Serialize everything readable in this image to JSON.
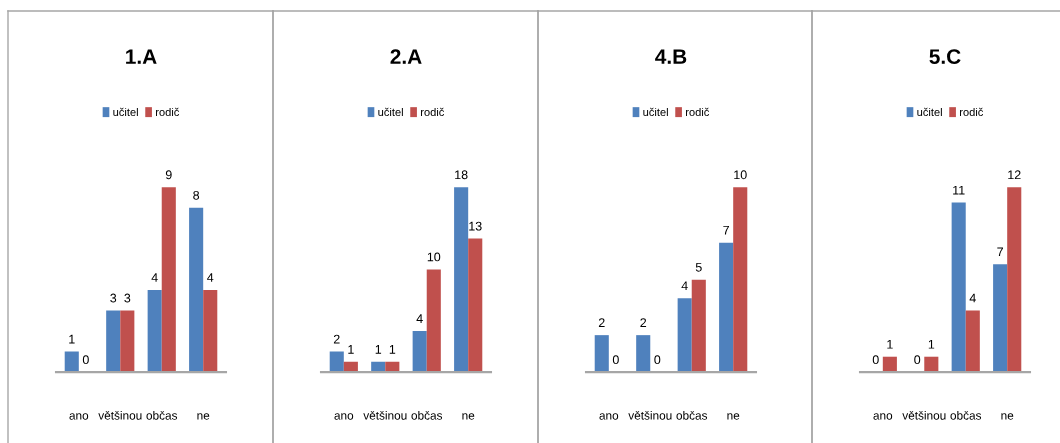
{
  "chart_data": [
    {
      "type": "bar",
      "title": "1.A",
      "categories": [
        "ano",
        "většinou",
        "občas",
        "ne"
      ],
      "series": [
        {
          "name": "učitel",
          "color": "#4f81bd",
          "values": [
            1,
            3,
            4,
            8
          ]
        },
        {
          "name": "rodič",
          "color": "#c0504d",
          "values": [
            0,
            3,
            9,
            4
          ]
        }
      ],
      "data_labels": true,
      "legend": "top",
      "grid": false,
      "tick_labels": "x"
    },
    {
      "type": "bar",
      "title": "2.A",
      "categories": [
        "ano",
        "většinou",
        "občas",
        "ne"
      ],
      "series": [
        {
          "name": "učitel",
          "color": "#4f81bd",
          "values": [
            2,
            1,
            4,
            18
          ]
        },
        {
          "name": "rodič",
          "color": "#c0504d",
          "values": [
            1,
            1,
            10,
            13
          ]
        }
      ],
      "data_labels": true,
      "legend": "top",
      "grid": false,
      "tick_labels": "x"
    },
    {
      "type": "bar",
      "title": "4.B",
      "categories": [
        "ano",
        "většinou",
        "občas",
        "ne"
      ],
      "series": [
        {
          "name": "učitel",
          "color": "#4f81bd",
          "values": [
            2,
            2,
            4,
            7
          ]
        },
        {
          "name": "rodič",
          "color": "#c0504d",
          "values": [
            0,
            0,
            5,
            10
          ]
        }
      ],
      "data_labels": true,
      "legend": "top",
      "grid": false,
      "tick_labels": "x"
    },
    {
      "type": "bar",
      "title": "5.C",
      "categories": [
        "ano",
        "většinou",
        "občas",
        "ne"
      ],
      "series": [
        {
          "name": "učitel",
          "color": "#4f81bd",
          "values": [
            0,
            0,
            11,
            7
          ]
        },
        {
          "name": "rodič",
          "color": "#c0504d",
          "values": [
            1,
            1,
            4,
            12
          ]
        }
      ],
      "data_labels": true,
      "legend": "top",
      "grid": false,
      "tick_labels": "x"
    }
  ]
}
